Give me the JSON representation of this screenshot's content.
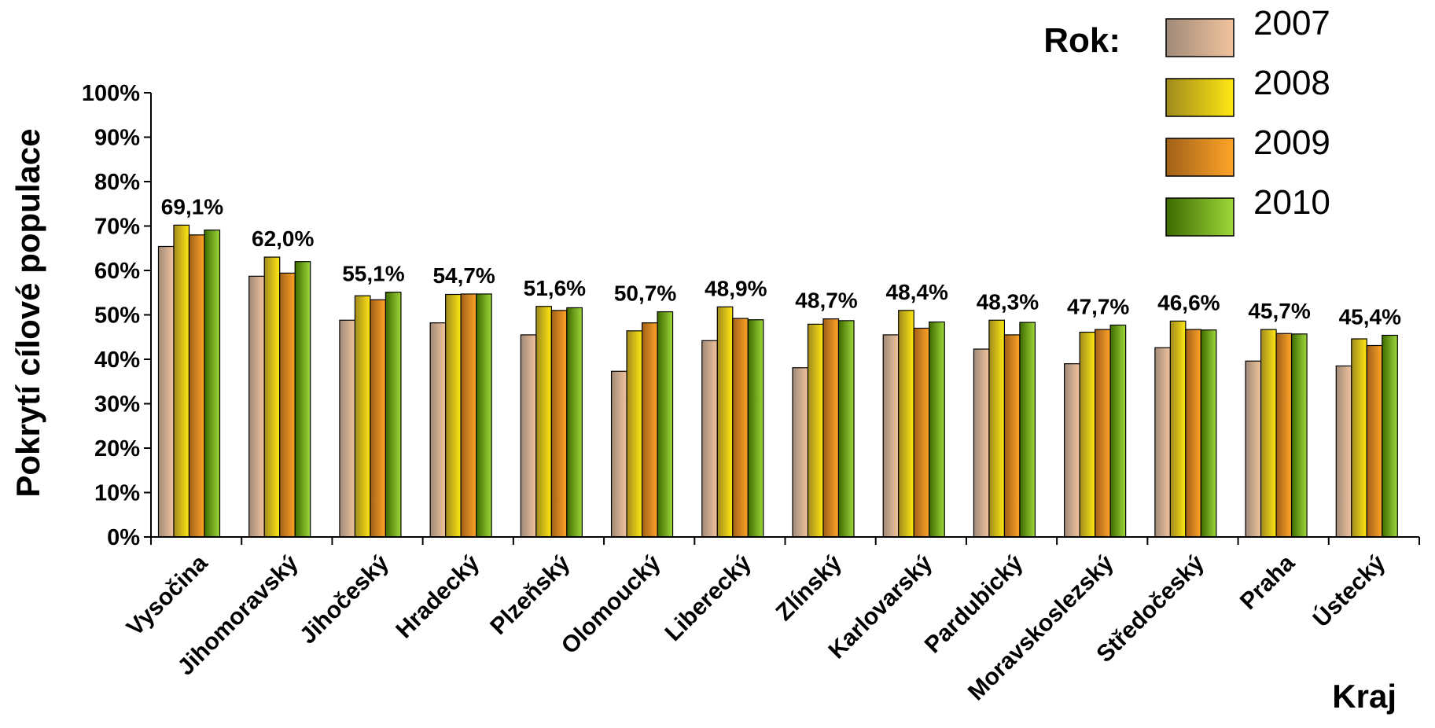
{
  "chart_data": {
    "type": "bar",
    "title": "",
    "xlabel": "Kraj",
    "ylabel": "Pokrytí cílové populace",
    "ylim": [
      0,
      100
    ],
    "yticks": [
      "0%",
      "10%",
      "20%",
      "30%",
      "40%",
      "50%",
      "60%",
      "70%",
      "80%",
      "90%",
      "100%"
    ],
    "legend_title": "Rok:",
    "legend_position": "top-right",
    "grid": false,
    "categories": [
      "Vysočina",
      "Jihomoravský",
      "Jihočeský",
      "Hradecký",
      "Plzeňský",
      "Olomoucký",
      "Liberecký",
      "Zlínský",
      "Karlovarský",
      "Pardubický",
      "Moravskoslezský",
      "Středočeský",
      "Praha",
      "Ústecký"
    ],
    "series": [
      {
        "name": "2007",
        "values": [
          65.4,
          58.7,
          48.8,
          48.2,
          45.5,
          37.3,
          44.2,
          38.1,
          45.5,
          42.3,
          39.0,
          42.6,
          39.6,
          38.5
        ]
      },
      {
        "name": "2008",
        "values": [
          70.2,
          63.0,
          54.3,
          54.6,
          51.9,
          46.4,
          51.8,
          47.9,
          51.0,
          48.8,
          46.1,
          48.6,
          46.7,
          44.6
        ]
      },
      {
        "name": "2009",
        "values": [
          68.0,
          59.4,
          53.4,
          54.7,
          51.0,
          48.2,
          49.2,
          49.1,
          47.0,
          45.5,
          46.7,
          46.7,
          45.8,
          43.1
        ]
      },
      {
        "name": "2010",
        "values": [
          69.1,
          62.0,
          55.1,
          54.7,
          51.6,
          50.7,
          48.9,
          48.7,
          48.4,
          48.3,
          47.7,
          46.6,
          45.7,
          45.4
        ]
      }
    ],
    "data_labels": [
      "69,1%",
      "62,0%",
      "55,1%",
      "54,7%",
      "51,6%",
      "50,7%",
      "48,9%",
      "48,7%",
      "48,4%",
      "48,3%",
      "47,7%",
      "46,6%",
      "45,7%",
      "45,4%"
    ],
    "colors": {
      "2007": [
        "#a08a78",
        "#f2c49e"
      ],
      "2008": [
        "#a08a1e",
        "#ffe812"
      ],
      "2009": [
        "#a06018",
        "#ffa428"
      ],
      "2010": [
        "#3e6a00",
        "#9ed83a"
      ]
    }
  }
}
